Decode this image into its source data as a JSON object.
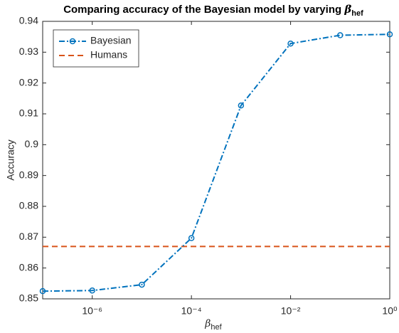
{
  "chart_data": {
    "type": "line",
    "title": "Comparing accuracy of the Bayesian model by varying",
    "title_symbol": "β",
    "title_subscript": "hef",
    "xlabel_symbol": "β",
    "xlabel_subscript": "hef",
    "ylabel": "Accuracy",
    "x": [
      1e-07,
      1e-06,
      1e-05,
      0.0001,
      0.001,
      0.01,
      0.1,
      1
    ],
    "series": [
      {
        "name": "Bayesian",
        "color": "#0072bd",
        "values": [
          0.8525,
          0.8527,
          0.8546,
          0.8697,
          0.9127,
          0.9328,
          0.9355,
          0.9358
        ]
      }
    ],
    "reference_lines": [
      {
        "name": "Humans",
        "color": "#d95319",
        "value": 0.867
      }
    ],
    "xlim": [
      1e-07,
      1
    ],
    "xscale": "log",
    "xticks": [
      {
        "value": 1e-06,
        "label": "10⁻⁶"
      },
      {
        "value": 0.0001,
        "label": "10⁻⁴"
      },
      {
        "value": 0.01,
        "label": "10⁻²"
      },
      {
        "value": 1,
        "label": "10⁰"
      }
    ],
    "ylim": [
      0.85,
      0.94
    ],
    "yticks": [
      0.85,
      0.86,
      0.87,
      0.88,
      0.89,
      0.9,
      0.91,
      0.92,
      0.93,
      0.94
    ],
    "legend": "upper-left",
    "grid": false
  }
}
